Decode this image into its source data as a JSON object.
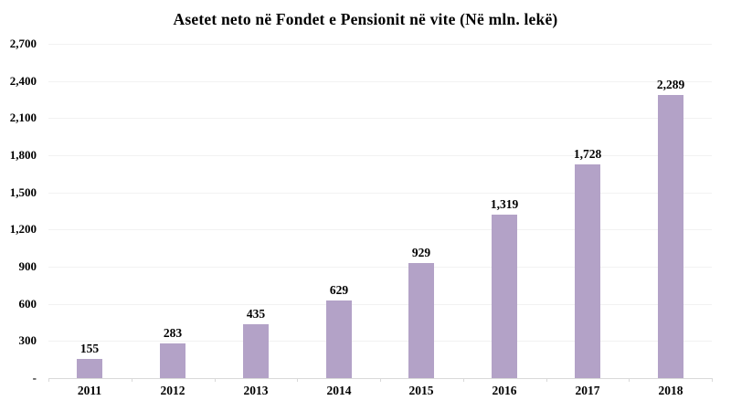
{
  "chart_data": {
    "type": "bar",
    "title": "Asetet neto në Fondet e Pensionit në vite (Në mln. lekë)",
    "categories": [
      "2011",
      "2012",
      "2013",
      "2014",
      "2015",
      "2016",
      "2017",
      "2018"
    ],
    "values": [
      155,
      283,
      435,
      629,
      929,
      1319,
      1728,
      2289
    ],
    "value_labels": [
      "155",
      "283",
      "435",
      "629",
      "929",
      "1,319",
      "1,728",
      "2,289"
    ],
    "xlabel": "",
    "ylabel": "",
    "ylim": [
      0,
      2700
    ],
    "ytick_interval": 300,
    "yticks": [
      {
        "value": 2700,
        "label": "2,700"
      },
      {
        "value": 2400,
        "label": "2,400"
      },
      {
        "value": 2100,
        "label": "2,100"
      },
      {
        "value": 1800,
        "label": "1,800"
      },
      {
        "value": 1500,
        "label": "1,500"
      },
      {
        "value": 1200,
        "label": "1,200"
      },
      {
        "value": 900,
        "label": "900"
      },
      {
        "value": 600,
        "label": "600"
      },
      {
        "value": 300,
        "label": "300"
      },
      {
        "value": 0,
        "label": "-"
      }
    ],
    "grid": true,
    "legend": false,
    "colors": {
      "bar": "#b3a2c7",
      "gridline": "#f2f2f2",
      "axis": "#d9d9d9",
      "text": "#000000",
      "background": "#ffffff"
    }
  }
}
